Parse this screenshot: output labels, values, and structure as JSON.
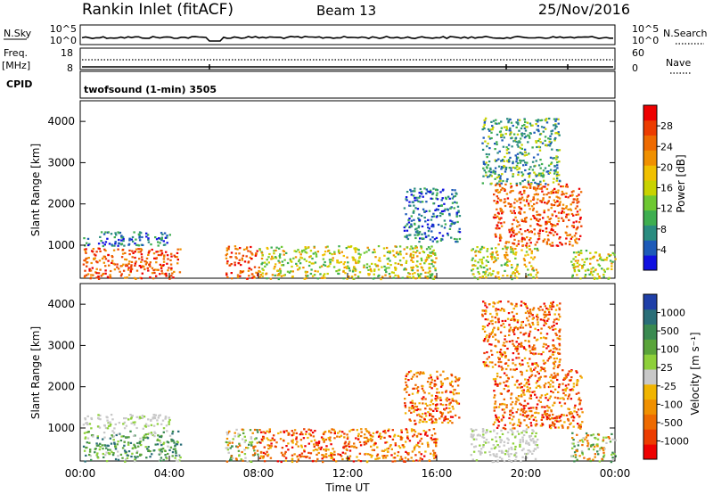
{
  "header": {
    "station": "Rankin Inlet (fitACF)",
    "beam": "Beam 13",
    "date": "25/Nov/2016"
  },
  "noise_panel": {
    "left_label": "N.Sky",
    "left_ticks": [
      "10^5",
      "10^0"
    ],
    "right_ticks": [
      "10^5",
      "10^0"
    ],
    "right_label": "N.Search"
  },
  "freq_panel": {
    "left_label_1": "Freq.",
    "left_label_2": "[MHz]",
    "left_ticks": [
      "18",
      "8"
    ],
    "right_ticks": [
      "60",
      "0"
    ],
    "right_label": "Nave"
  },
  "cpid": {
    "label": "CPID",
    "text": "twofsound (1-min) 3505"
  },
  "x_axis": {
    "ticks": [
      "00:00",
      "04:00",
      "08:00",
      "12:00",
      "16:00",
      "20:00",
      "00:00"
    ],
    "label": "Time UT"
  },
  "chart_data": [
    {
      "type": "heatmap",
      "name": "power",
      "ylabel": "Slant Range [km]",
      "ylim": [
        200,
        4500
      ],
      "yticks": [
        "1000",
        "2000",
        "3000",
        "4000"
      ],
      "xlim": [
        "00:00",
        "24:00"
      ],
      "colorbar": {
        "label": "Power [dB]",
        "ticks": [
          "4",
          "8",
          "12",
          "16",
          "20",
          "24",
          "28"
        ],
        "colors": [
          "#1010e0",
          "#1d5ab8",
          "#2a8c80",
          "#3eae50",
          "#6ec832",
          "#c8d200",
          "#f0c000",
          "#f09000",
          "#ee6a00",
          "#ec3c00",
          "#ee0000"
        ]
      },
      "regions": [
        {
          "t0": 0.1,
          "t1": 4.5,
          "r0": 200,
          "r1": 950,
          "level": "strong"
        },
        {
          "t0": 0.1,
          "t1": 4.0,
          "r0": 1000,
          "r1": 1350,
          "level": "weak"
        },
        {
          "t0": 6.5,
          "t1": 8.0,
          "r0": 200,
          "r1": 1000,
          "level": "strong"
        },
        {
          "t0": 8.0,
          "t1": 16.0,
          "r0": 200,
          "r1": 1000,
          "level": "moderate"
        },
        {
          "t0": 14.5,
          "t1": 17.0,
          "r0": 1100,
          "r1": 2400,
          "level": "weak"
        },
        {
          "t0": 17.5,
          "t1": 20.5,
          "r0": 200,
          "r1": 1000,
          "level": "moderate"
        },
        {
          "t0": 18.5,
          "t1": 22.5,
          "r0": 1000,
          "r1": 2500,
          "level": "strong"
        },
        {
          "t0": 18.0,
          "t1": 21.5,
          "r0": 2500,
          "r1": 4100,
          "level": "scattered"
        },
        {
          "t0": 22.0,
          "t1": 24.0,
          "r0": 200,
          "r1": 900,
          "level": "moderate"
        }
      ]
    },
    {
      "type": "heatmap",
      "name": "velocity",
      "ylabel": "Slant Range [km]",
      "ylim": [
        200,
        4500
      ],
      "yticks": [
        "1000",
        "2000",
        "3000",
        "4000"
      ],
      "xlim": [
        "00:00",
        "24:00"
      ],
      "colorbar": {
        "label": "Velocity [m s⁻¹]",
        "ticks": [
          "1000",
          "500",
          "100",
          "25",
          "-25",
          "-100",
          "-500",
          "-1000"
        ],
        "colors": [
          "#1f3fa8",
          "#2a6e78",
          "#3a8a50",
          "#5aa43a",
          "#8ed03a",
          "#c8c8c8",
          "#f0b400",
          "#f09000",
          "#ee6a00",
          "#ec3c00",
          "#ee0000"
        ]
      },
      "regions": [
        {
          "t0": 0.1,
          "t1": 4.5,
          "r0": 200,
          "r1": 950,
          "level": "toward"
        },
        {
          "t0": 0.1,
          "t1": 4.0,
          "r0": 1000,
          "r1": 1350,
          "level": "ground"
        },
        {
          "t0": 6.5,
          "t1": 8.0,
          "r0": 200,
          "r1": 1000,
          "level": "mixed"
        },
        {
          "t0": 8.0,
          "t1": 16.0,
          "r0": 200,
          "r1": 1000,
          "level": "away"
        },
        {
          "t0": 14.5,
          "t1": 17.0,
          "r0": 1100,
          "r1": 2400,
          "level": "away"
        },
        {
          "t0": 17.5,
          "t1": 20.5,
          "r0": 200,
          "r1": 1000,
          "level": "ground"
        },
        {
          "t0": 18.5,
          "t1": 22.5,
          "r0": 1000,
          "r1": 2500,
          "level": "away"
        },
        {
          "t0": 18.0,
          "t1": 21.5,
          "r0": 2500,
          "r1": 4100,
          "level": "away"
        },
        {
          "t0": 22.0,
          "t1": 24.0,
          "r0": 200,
          "r1": 900,
          "level": "mixed"
        }
      ]
    }
  ]
}
